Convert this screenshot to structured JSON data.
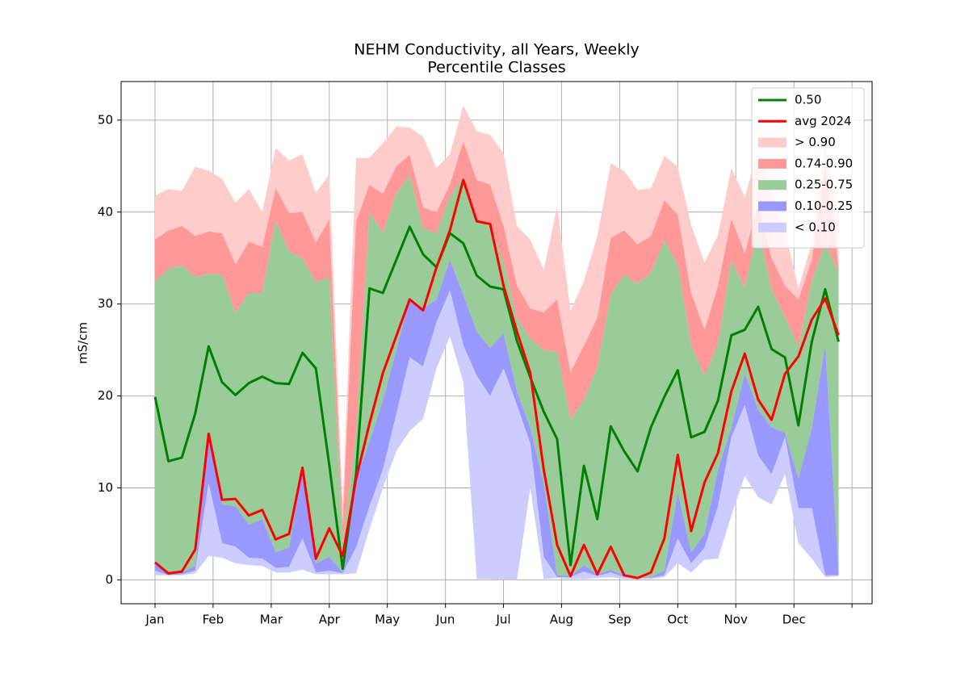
{
  "chart_data": {
    "type": "line",
    "title": "NEHM Conductivity, all Years, Weekly",
    "subtitle": "Percentile Classes",
    "y_label": "mS/cm",
    "x": [
      1,
      2,
      3,
      4,
      5,
      6,
      7,
      8,
      9,
      10,
      11,
      12,
      13,
      14,
      15,
      16,
      17,
      18,
      19,
      20,
      21,
      22,
      23,
      24,
      25,
      26,
      27,
      28,
      29,
      30,
      31,
      32,
      33,
      34,
      35,
      36,
      37,
      38,
      39,
      40,
      41,
      42,
      43,
      44,
      45,
      46,
      47,
      48,
      49,
      50,
      51,
      52
    ],
    "xlim": [
      -1.53,
      54.5
    ],
    "xticks": [
      {
        "value": 1,
        "label": "Jan"
      },
      {
        "value": 5.33,
        "label": "Feb"
      },
      {
        "value": 9.67,
        "label": "Mar"
      },
      {
        "value": 14,
        "label": "Apr"
      },
      {
        "value": 18.33,
        "label": "May"
      },
      {
        "value": 22.67,
        "label": "Jun"
      },
      {
        "value": 27,
        "label": "Jul"
      },
      {
        "value": 31.33,
        "label": "Aug"
      },
      {
        "value": 35.67,
        "label": "Sep"
      },
      {
        "value": 40,
        "label": "Oct"
      },
      {
        "value": 44.33,
        "label": "Nov"
      },
      {
        "value": 48.67,
        "label": "Dec"
      },
      {
        "value": 53,
        "label": null
      }
    ],
    "ylim": [
      -2.6,
      54.2
    ],
    "yticks": [
      0,
      10,
      20,
      30,
      40,
      50
    ],
    "grid": true,
    "legend": "upper right",
    "series": [
      {
        "name": "0.50",
        "kind": "line",
        "color": "#008000",
        "values": [
          19.9,
          12.9,
          13.3,
          18.1,
          25.4,
          21.5,
          20.1,
          21.4,
          22.1,
          21.4,
          21.3,
          24.7,
          23.0,
          12.5,
          1.2,
          11.5,
          31.7,
          31.2,
          34.8,
          38.4,
          35.4,
          34.0,
          37.7,
          36.6,
          33.1,
          31.9,
          31.6,
          26.0,
          22.0,
          18.3,
          15.3,
          1.6,
          12.4,
          6.6,
          16.7,
          14.0,
          11.8,
          16.6,
          19.9,
          22.8,
          15.5,
          16.1,
          19.5,
          26.6,
          27.2,
          29.7,
          25.1,
          24.2,
          16.8,
          25.9,
          31.6,
          25.9
        ]
      },
      {
        "name": "avg 2024",
        "kind": "line",
        "color": "#ff0000",
        "values": [
          1.9,
          0.7,
          0.9,
          3.3,
          15.9,
          8.7,
          8.8,
          7.0,
          7.6,
          4.4,
          5.0,
          12.2,
          2.3,
          5.6,
          2.6,
          11.0,
          17.0,
          22.5,
          26.5,
          30.5,
          29.3,
          34.0,
          38.0,
          43.5,
          39.0,
          38.7,
          32.0,
          27.0,
          22.5,
          12.0,
          3.8,
          0.4,
          3.8,
          0.6,
          3.6,
          0.5,
          0.2,
          0.8,
          4.5,
          13.6,
          5.3,
          10.6,
          13.8,
          20.5,
          24.6,
          19.6,
          17.4,
          22.4,
          24.3,
          28.3,
          30.6,
          26.6
        ]
      },
      {
        "name": "> 0.90",
        "kind": "band",
        "color": "#ffcccc",
        "values": [
          41.8,
          42.5,
          42.3,
          44.9,
          44.5,
          43.6,
          41.0,
          42.5,
          40.0,
          47.0,
          45.6,
          46.3,
          42.1,
          44.1,
          8.0,
          45.9,
          45.9,
          47.5,
          49.3,
          49.2,
          48.2,
          44.8,
          46.3,
          51.6,
          48.8,
          48.4,
          46.4,
          38.5,
          37.0,
          33.7,
          40.6,
          29.3,
          32.5,
          37.4,
          45.3,
          44.5,
          42.4,
          42.6,
          46.1,
          44.9,
          38.6,
          34.5,
          37.5,
          44.8,
          41.6,
          46.7,
          42.3,
          38.0,
          31.7,
          36.6,
          47.5,
          39.5
        ]
      },
      {
        "name": "0.74-0.90",
        "kind": "band",
        "color": "#ff9999",
        "values": [
          37.0,
          38.0,
          38.5,
          37.4,
          37.9,
          37.7,
          34.3,
          36.8,
          36.2,
          42.6,
          39.9,
          40.0,
          36.7,
          39.2,
          6.0,
          39.0,
          43.0,
          42.0,
          45.0,
          46.2,
          40.5,
          40.0,
          43.0,
          47.7,
          43.5,
          43.0,
          38.5,
          32.0,
          29.5,
          29.1,
          30.5,
          22.6,
          25.5,
          28.5,
          37.2,
          38.0,
          36.5,
          37.4,
          41.3,
          39.7,
          31.2,
          27.2,
          32.0,
          39.3,
          35.5,
          41.0,
          35.0,
          32.0,
          30.5,
          34.8,
          45.0,
          34.0
        ]
      },
      {
        "name": "0.25-0.75",
        "kind": "band",
        "color": "#99cc99",
        "values": [
          32.5,
          33.8,
          34.2,
          32.9,
          33.3,
          33.2,
          29.0,
          31.2,
          31.2,
          39.0,
          35.7,
          35.0,
          32.3,
          33.0,
          4.0,
          16.0,
          40.0,
          37.7,
          42.0,
          44.0,
          38.2,
          37.7,
          41.7,
          43.8,
          39.0,
          38.5,
          34.5,
          28.5,
          26.2,
          25.0,
          24.8,
          17.4,
          19.6,
          23.1,
          31.0,
          33.2,
          32.2,
          33.4,
          36.9,
          34.2,
          25.5,
          22.2,
          25.7,
          34.7,
          31.8,
          38.3,
          31.5,
          28.6,
          25.3,
          32.5,
          36.5,
          33.5
        ]
      },
      {
        "name": "0.10-0.25",
        "kind": "band",
        "color": "#9999ff",
        "values": [
          1.8,
          0.7,
          0.8,
          1.5,
          15.7,
          8.2,
          8.0,
          6.0,
          6.6,
          3.0,
          3.5,
          12.0,
          1.8,
          2.5,
          0.8,
          11.0,
          15.0,
          19.5,
          25.0,
          30.7,
          29.5,
          30.5,
          34.8,
          31.0,
          27.0,
          25.2,
          26.8,
          20.5,
          16.5,
          10.5,
          0.5,
          0.4,
          1.6,
          0.6,
          1.1,
          0.5,
          0.2,
          0.3,
          1.0,
          9.5,
          3.0,
          5.0,
          12.0,
          16.5,
          22.5,
          18.5,
          16.6,
          16.0,
          11.0,
          16.5,
          25.5,
          0.8
        ]
      },
      {
        "name": "< 0.10",
        "kind": "band",
        "color": "#ccccff",
        "values": [
          1.0,
          0.5,
          0.6,
          1.0,
          10.5,
          4.0,
          3.6,
          2.4,
          2.3,
          1.3,
          1.4,
          4.5,
          0.8,
          1.0,
          0.7,
          3.5,
          8.0,
          12.0,
          18.0,
          24.2,
          23.2,
          28.0,
          31.5,
          25.5,
          22.2,
          20.0,
          23.0,
          19.0,
          14.8,
          2.5,
          0.3,
          0.3,
          0.9,
          0.4,
          0.8,
          0.3,
          0.2,
          0.2,
          0.5,
          4.5,
          1.8,
          3.5,
          8.0,
          15.5,
          19.0,
          13.5,
          11.5,
          15.5,
          7.8,
          7.8,
          0.5,
          0.5
        ],
        "low": [
          0.5,
          0.5,
          0.5,
          0.7,
          2.6,
          2.4,
          1.8,
          1.6,
          1.5,
          0.8,
          0.8,
          1.1,
          0.6,
          0.6,
          0.6,
          0.7,
          5.5,
          10.0,
          14.0,
          16.2,
          17.5,
          23.0,
          26.5,
          21.5,
          0.1,
          0.1,
          0.0,
          0.0,
          10.0,
          0.1,
          0.2,
          0.1,
          0.1,
          0.2,
          0.3,
          0.1,
          0.1,
          0.1,
          0.3,
          1.8,
          0.8,
          2.2,
          2.3,
          7.0,
          11.3,
          9.0,
          8.2,
          11.5,
          4.0,
          2.3,
          0.3,
          0.4
        ]
      }
    ]
  }
}
